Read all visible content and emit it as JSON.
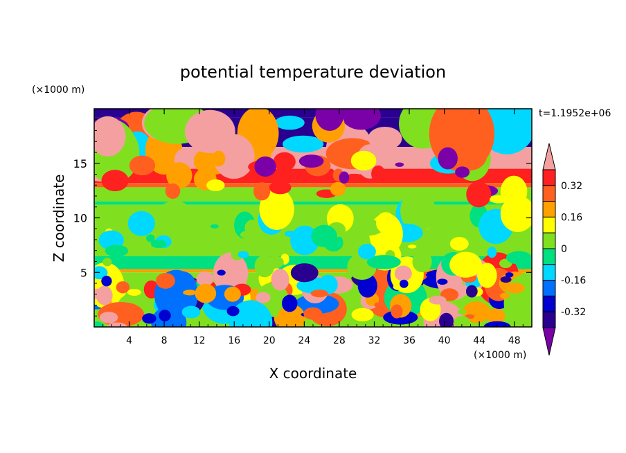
{
  "chart_data": {
    "type": "heatmap",
    "title": "potential temperature deviation",
    "xlabel": "X coordinate",
    "ylabel": "Z coordinate",
    "x_unit": "(×1000 m)",
    "y_unit": "(×1000 m)",
    "time_label": "t=1.1952e+06",
    "xlim": [
      0,
      50
    ],
    "ylim": [
      0,
      20
    ],
    "x_ticks": [
      4,
      8,
      12,
      16,
      20,
      24,
      28,
      32,
      36,
      40,
      44,
      48
    ],
    "y_ticks": [
      5,
      10,
      15
    ],
    "colorbar": {
      "levels": [
        -0.4,
        -0.32,
        -0.24,
        -0.16,
        -0.08,
        0,
        0.08,
        0.16,
        0.24,
        0.32,
        0.4
      ],
      "tick_labels": [
        "0.32",
        "0.16",
        "0",
        "-0.16",
        "-0.32"
      ],
      "tick_values": [
        0.32,
        0.16,
        0,
        -0.16,
        -0.32
      ],
      "colors": [
        "#7a00a8",
        "#2a0090",
        "#0000d0",
        "#0070ff",
        "#00d8ff",
        "#00e080",
        "#80e020",
        "#ffff00",
        "#ffa000",
        "#ff6020",
        "#ff2020",
        "#f4a0a0"
      ],
      "extend": "both"
    },
    "layers": [
      {
        "z_range": [
          19.2,
          20
        ],
        "value": -0.4
      },
      {
        "z_range": [
          16.5,
          19.2
        ],
        "value": -0.4
      },
      {
        "z_range": [
          14.5,
          16.5
        ],
        "value": 0.4
      },
      {
        "z_range": [
          13.2,
          14.5
        ],
        "value": 0.36
      },
      {
        "z_range": [
          12.8,
          13.2
        ],
        "value": 0.3
      },
      {
        "z_range": [
          11.5,
          12.8
        ],
        "value": 0.04
      },
      {
        "z_range": [
          11.2,
          11.5
        ],
        "value": -0.04
      },
      {
        "z_range": [
          6.5,
          11.2
        ],
        "value": 0.04
      },
      {
        "z_range": [
          5.3,
          6.5
        ],
        "value": -0.04
      },
      {
        "z_range": [
          5.0,
          5.3
        ],
        "value": 0.2
      },
      {
        "z_range": [
          0,
          5.0
        ],
        "value": 0.0
      }
    ],
    "grid": false,
    "legend": "right"
  }
}
